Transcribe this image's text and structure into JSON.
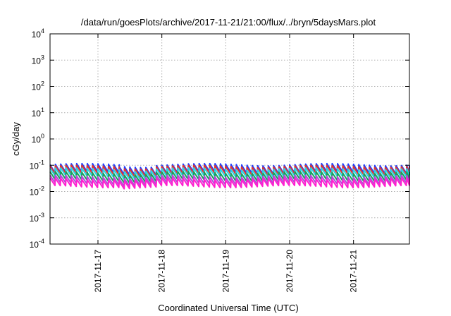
{
  "chart_data": {
    "type": "line",
    "title": "/data/run/goesPlots/archive/2017-11-21/21:00/flux/../bryn/5daysMars.plot",
    "xlabel": "Coordinated Universal Time (UTC)",
    "ylabel": "cGy/day",
    "yscale": "log",
    "ylim": [
      0.0001,
      10000
    ],
    "xlim": [
      "2017-11-16 06:00",
      "2017-11-21 21:00"
    ],
    "grid": true,
    "legend": "none",
    "y_ticks": [
      {
        "base": "10",
        "exp": "-4",
        "value": 0.0001
      },
      {
        "base": "10",
        "exp": "-3",
        "value": 0.001
      },
      {
        "base": "10",
        "exp": "-2",
        "value": 0.01
      },
      {
        "base": "10",
        "exp": "-1",
        "value": 0.1
      },
      {
        "base": "10",
        "exp": "0",
        "value": 1
      },
      {
        "base": "10",
        "exp": "1",
        "value": 10
      },
      {
        "base": "10",
        "exp": "2",
        "value": 100
      },
      {
        "base": "10",
        "exp": "3",
        "value": 1000
      },
      {
        "base": "10",
        "exp": "4",
        "value": 10000
      }
    ],
    "x_ticks": [
      "2017-11-17",
      "2017-11-18",
      "2017-11-19",
      "2017-11-20",
      "2017-11-21"
    ],
    "sawtooth_period_hours": 2,
    "series": [
      {
        "color": "#1f3fff",
        "peak": 0.105,
        "trough": 0.052
      },
      {
        "color": "#e8342a",
        "peak": 0.09,
        "trough": 0.046
      },
      {
        "color": "#2bd4e8",
        "peak": 0.072,
        "trough": 0.037
      },
      {
        "color": "#18a05a",
        "peak": 0.052,
        "trough": 0.027
      },
      {
        "color": "#b24cd8",
        "peak": 0.038,
        "trough": 0.02
      },
      {
        "color": "#ff1fd0",
        "peak": 0.03,
        "trough": 0.0155
      }
    ]
  }
}
